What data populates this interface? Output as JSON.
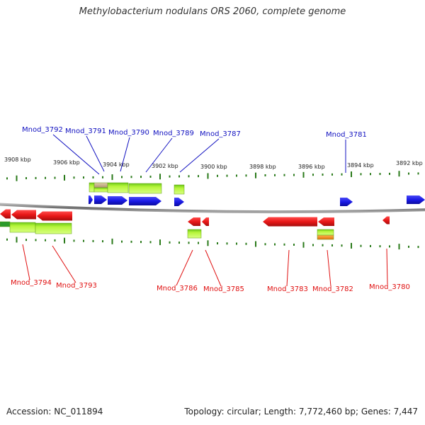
{
  "title": "Methylobacterium nodulans ORS 2060, complete genome",
  "accession": "Accession: NC_011894",
  "summary": "Topology: circular; Length: 7,772,460 bp; Genes: 7,447",
  "colors": {
    "forward_label": "#1010c0",
    "reverse_label": "#e01010",
    "forward_gene": "#1a1ae6",
    "reverse_gene": "#e81818",
    "feature_green": "#a6f022",
    "feature_orange": "#f08a1c",
    "feature_tan": "#c8b08a",
    "tick": "#2a7a1a",
    "backbone": "#8a8a8a"
  },
  "kbp_ticks": [
    "3908 kbp",
    "3906 kbp",
    "3904 kbp",
    "3902 kbp",
    "3900 kbp",
    "3898 kbp",
    "3896 kbp",
    "3894 kbp",
    "3892 kbp"
  ],
  "forward_genes": [
    "Mnod_3792",
    "Mnod_3791",
    "Mnod_3790",
    "Mnod_3789",
    "Mnod_3787",
    "Mnod_3781"
  ],
  "reverse_genes": [
    "Mnod_3794",
    "Mnod_3793",
    "Mnod_3786",
    "Mnod_3785",
    "Mnod_3783",
    "Mnod_3782",
    "Mnod_3780"
  ]
}
